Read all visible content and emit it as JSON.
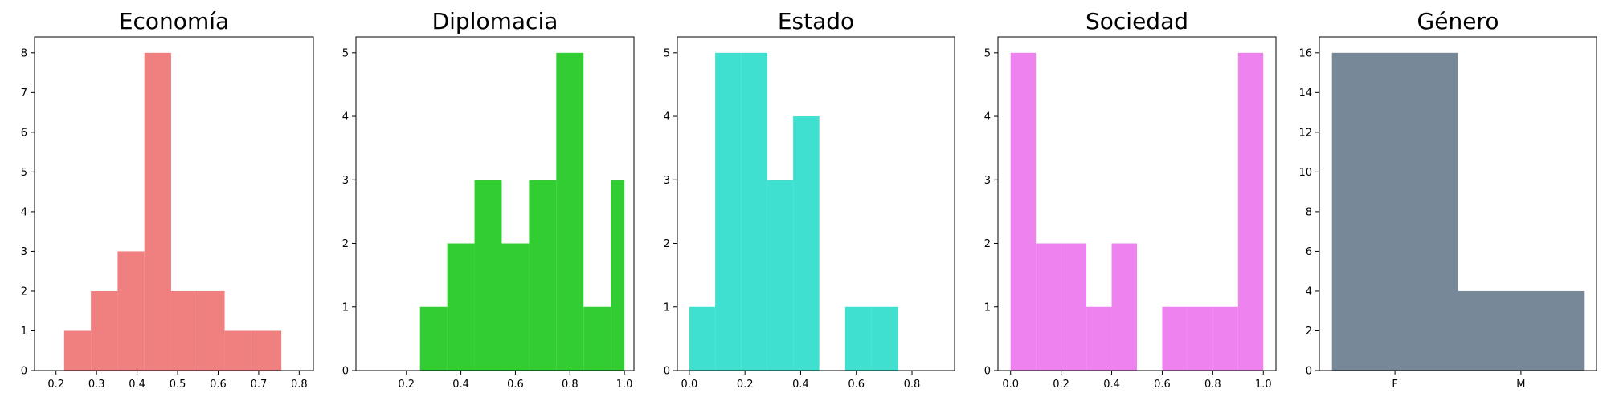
{
  "chart_data": [
    {
      "type": "bar",
      "title": "Economía",
      "color": "#F08080",
      "xlim": [
        0.147,
        0.835
      ],
      "ylim": [
        0,
        8.4
      ],
      "xticks": [
        0.2,
        0.3,
        0.4,
        0.5,
        0.6,
        0.7,
        0.8
      ],
      "xtick_labels": [
        "0.2",
        "0.3",
        "0.4",
        "0.5",
        "0.6",
        "0.7",
        "0.8"
      ],
      "yticks": [
        0,
        1,
        2,
        3,
        4,
        5,
        6,
        7,
        8
      ],
      "ytick_labels": [
        "0",
        "1",
        "2",
        "3",
        "4",
        "5",
        "6",
        "7",
        "8"
      ],
      "bin_edges": [
        0.22,
        0.286,
        0.352,
        0.418,
        0.484,
        0.55,
        0.616,
        0.682,
        0.756
      ],
      "values": [
        1,
        2,
        3,
        8,
        2,
        2,
        1,
        1
      ]
    },
    {
      "type": "bar",
      "title": "Diplomacia",
      "color": "#32CD32",
      "xlim": [
        0.015,
        1.035
      ],
      "ylim": [
        0,
        5.25
      ],
      "xticks": [
        0.2,
        0.4,
        0.6,
        0.8,
        1.0
      ],
      "xtick_labels": [
        "0.2",
        "0.4",
        "0.6",
        "0.8",
        "1.0"
      ],
      "yticks": [
        0,
        1,
        2,
        3,
        4,
        5
      ],
      "ytick_labels": [
        "0",
        "1",
        "2",
        "3",
        "4",
        "5"
      ],
      "bin_edges": [
        0.25,
        0.35,
        0.45,
        0.55,
        0.65,
        0.75,
        0.85,
        0.95,
        1.0
      ],
      "values": [
        1,
        2,
        3,
        2,
        3,
        5,
        1,
        3
      ]
    },
    {
      "type": "bar",
      "title": "Estado",
      "color": "#40E0D0",
      "xlim": [
        -0.043,
        0.953
      ],
      "ylim": [
        0,
        5.25
      ],
      "xticks": [
        0.0,
        0.2,
        0.4,
        0.6,
        0.8
      ],
      "xtick_labels": [
        "0.0",
        "0.2",
        "0.4",
        "0.6",
        "0.8"
      ],
      "yticks": [
        0,
        1,
        2,
        3,
        4,
        5
      ],
      "ytick_labels": [
        "0",
        "1",
        "2",
        "3",
        "4",
        "5"
      ],
      "bin_edges": [
        0.0,
        0.093,
        0.187,
        0.28,
        0.373,
        0.467,
        0.56,
        0.653,
        0.75
      ],
      "values": [
        1,
        5,
        5,
        3,
        4,
        0,
        1,
        1
      ]
    },
    {
      "type": "bar",
      "title": "Sociedad",
      "color": "#EE82EE",
      "xlim": [
        -0.05,
        1.05
      ],
      "ylim": [
        0,
        5.25
      ],
      "xticks": [
        0.0,
        0.2,
        0.4,
        0.6,
        0.8,
        1.0
      ],
      "xtick_labels": [
        "0.0",
        "0.2",
        "0.4",
        "0.6",
        "0.8",
        "1.0"
      ],
      "yticks": [
        0,
        1,
        2,
        3,
        4,
        5
      ],
      "ytick_labels": [
        "0",
        "1",
        "2",
        "3",
        "4",
        "5"
      ],
      "bin_edges": [
        0.0,
        0.1,
        0.2,
        0.3,
        0.4,
        0.5,
        0.6,
        0.7,
        0.8,
        0.9,
        1.0
      ],
      "values": [
        5,
        2,
        2,
        1,
        2,
        0,
        1,
        1,
        1,
        5
      ]
    },
    {
      "type": "bar",
      "title": "Género",
      "color": "#778899",
      "xlim": [
        -0.1,
        2.1
      ],
      "ylim": [
        0,
        16.8
      ],
      "xticks": [
        0.5,
        1.5
      ],
      "xtick_labels": [
        "F",
        "M"
      ],
      "yticks": [
        0,
        2,
        4,
        6,
        8,
        10,
        12,
        14,
        16
      ],
      "ytick_labels": [
        "0",
        "2",
        "4",
        "6",
        "8",
        "10",
        "12",
        "14",
        "16"
      ],
      "categories": [
        "F",
        "M"
      ],
      "bin_edges": [
        0,
        1,
        2
      ],
      "values": [
        16,
        4
      ]
    }
  ]
}
